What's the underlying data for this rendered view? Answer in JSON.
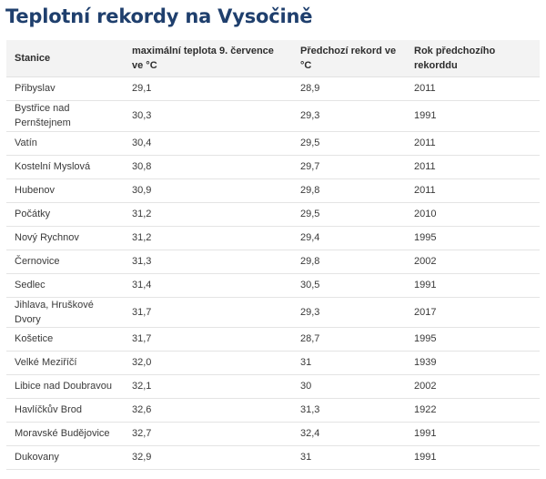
{
  "title": "Teplotní rekordy na Vysočině",
  "columns": [
    "Stanice",
    "maximální teplota 9. července ve °C",
    "Předchozí rekord ve °C",
    "Rok předchozího rekorddu"
  ],
  "rows": [
    {
      "station": "Přibyslav",
      "max_temp": "29,1",
      "prev_record": "28,9",
      "prev_year": "2011"
    },
    {
      "station": "Bystřice nad Pernštejnem",
      "max_temp": "30,3",
      "prev_record": "29,3",
      "prev_year": "1991"
    },
    {
      "station": "Vatín",
      "max_temp": "30,4",
      "prev_record": "29,5",
      "prev_year": "2011"
    },
    {
      "station": "Kostelní Myslová",
      "max_temp": "30,8",
      "prev_record": "29,7",
      "prev_year": "2011"
    },
    {
      "station": "Hubenov",
      "max_temp": "30,9",
      "prev_record": "29,8",
      "prev_year": "2011"
    },
    {
      "station": "Počátky",
      "max_temp": "31,2",
      "prev_record": "29,5",
      "prev_year": "2010"
    },
    {
      "station": "Nový Rychnov",
      "max_temp": "31,2",
      "prev_record": "29,4",
      "prev_year": "1995"
    },
    {
      "station": "Černovice",
      "max_temp": "31,3",
      "prev_record": "29,8",
      "prev_year": "2002"
    },
    {
      "station": "Sedlec",
      "max_temp": "31,4",
      "prev_record": "30,5",
      "prev_year": "1991"
    },
    {
      "station": "Jihlava, Hruškové Dvory",
      "max_temp": "31,7",
      "prev_record": "29,3",
      "prev_year": "2017"
    },
    {
      "station": "Košetice",
      "max_temp": "31,7",
      "prev_record": "28,7",
      "prev_year": "1995"
    },
    {
      "station": "Velké Meziříčí",
      "max_temp": "32,0",
      "prev_record": "31",
      "prev_year": "1939"
    },
    {
      "station": "Libice nad Doubravou",
      "max_temp": "32,1",
      "prev_record": "30",
      "prev_year": "2002"
    },
    {
      "station": "Havlíčkův Brod",
      "max_temp": "32,6",
      "prev_record": "31,3",
      "prev_year": "1922"
    },
    {
      "station": "Moravské Budějovice",
      "max_temp": "32,7",
      "prev_record": "32,4",
      "prev_year": "1991"
    },
    {
      "station": "Dukovany",
      "max_temp": "32,9",
      "prev_record": "31",
      "prev_year": "1991"
    }
  ],
  "chart_data": {
    "type": "table",
    "title": "Teplotní rekordy na Vysočině",
    "columns": [
      "Stanice",
      "maximální teplota 9. července ve °C",
      "Předchozí rekord ve °C",
      "Rok předchozího rekorddu"
    ],
    "rows": [
      [
        "Přibyslav",
        29.1,
        28.9,
        2011
      ],
      [
        "Bystřice nad Pernštejnem",
        30.3,
        29.3,
        1991
      ],
      [
        "Vatín",
        30.4,
        29.5,
        2011
      ],
      [
        "Kostelní Myslová",
        30.8,
        29.7,
        2011
      ],
      [
        "Hubenov",
        30.9,
        29.8,
        2011
      ],
      [
        "Počátky",
        31.2,
        29.5,
        2010
      ],
      [
        "Nový Rychnov",
        31.2,
        29.4,
        1995
      ],
      [
        "Černovice",
        31.3,
        29.8,
        2002
      ],
      [
        "Sedlec",
        31.4,
        30.5,
        1991
      ],
      [
        "Jihlava, Hruškové Dvory",
        31.7,
        29.3,
        2017
      ],
      [
        "Košetice",
        31.7,
        28.7,
        1995
      ],
      [
        "Velké Meziříčí",
        32.0,
        31,
        1939
      ],
      [
        "Libice nad Doubravou",
        32.1,
        30,
        2002
      ],
      [
        "Havlíčkův Brod",
        32.6,
        31.3,
        1922
      ],
      [
        "Moravské Budějovice",
        32.7,
        32.4,
        1991
      ],
      [
        "Dukovany",
        32.9,
        31,
        1991
      ]
    ]
  }
}
